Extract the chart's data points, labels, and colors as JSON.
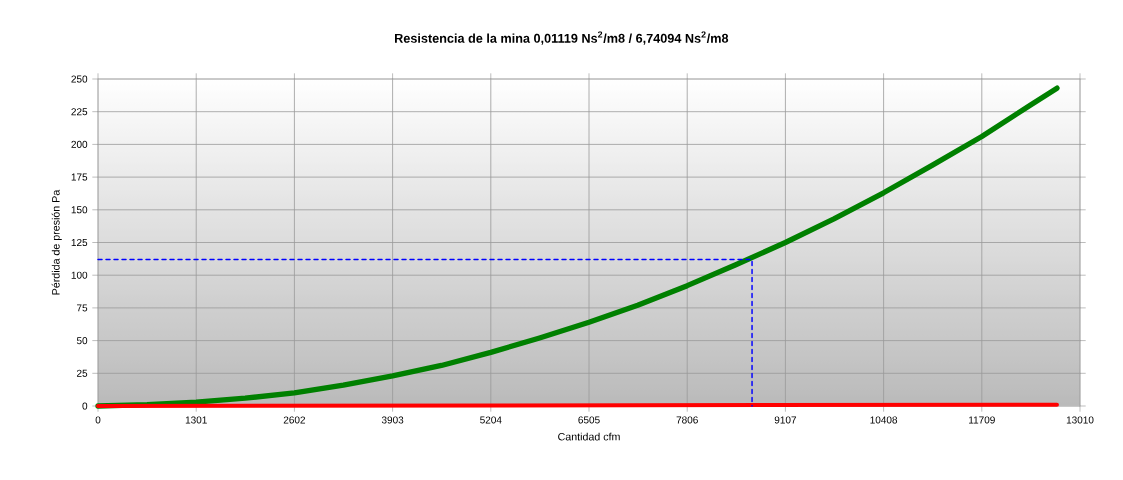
{
  "chart_data": {
    "type": "line",
    "title": "Resistencia de la mina 0,01119 Ns$^{2}$/m8 / 6,74094 Ns$^{2}$/m8",
    "xlabel": "Cantidad  cfm",
    "ylabel": "Pérdida de presión  Pa",
    "xlim": [
      0,
      13010
    ],
    "ylim": [
      0,
      250
    ],
    "xticks": [
      0,
      1301,
      2602,
      3903,
      5204,
      6505,
      7806,
      9107,
      10408,
      11709,
      13010
    ],
    "yticks": [
      0,
      25,
      50,
      75,
      100,
      125,
      150,
      175,
      200,
      225,
      250
    ],
    "grid": true,
    "marker": "none",
    "series": [
      {
        "color": "#008000",
        "line_style": "solid",
        "x": [
          0,
          650,
          1301,
          1950,
          2602,
          3250,
          3903,
          4550,
          5204,
          5850,
          6505,
          7150,
          7806,
          8450,
          9107,
          9750,
          10408,
          11050,
          11709,
          12350,
          12705
        ],
        "values": [
          0,
          1,
          3,
          6,
          10,
          16,
          23,
          31,
          41,
          52,
          64,
          77,
          92,
          108,
          125,
          143,
          163,
          184,
          206,
          230,
          243
        ]
      },
      {
        "color": "#ff0000",
        "line_style": "solid",
        "x": [
          0,
          12705
        ],
        "values": [
          0,
          1
        ]
      },
      {
        "color": "#0000ff",
        "line_style": "dashed",
        "x": [
          0,
          8665,
          8665
        ],
        "values": [
          112,
          112,
          0
        ]
      }
    ]
  }
}
